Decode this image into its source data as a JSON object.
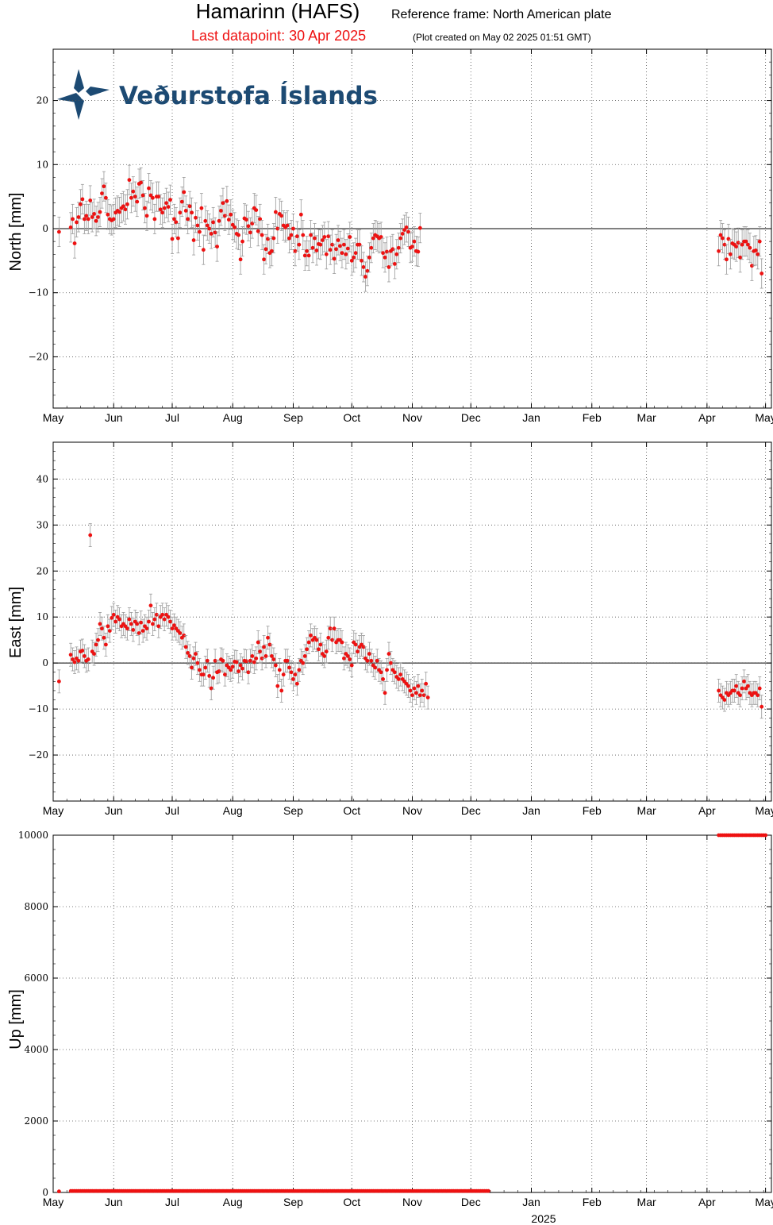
{
  "header": {
    "title": "Hamarinn (HAFS)",
    "frame": "Reference frame: North American plate",
    "last": "Last datapoint: 30 Apr 2025",
    "created": "(Plot created on May 02 2025 01:51 GMT)"
  },
  "logo": {
    "text": "Veðurstofa Íslands"
  },
  "colors": {
    "point": "#ee1111",
    "errorbar": "#999999",
    "frame": "#000000",
    "grid": "#555555"
  },
  "chart_data": [
    {
      "type": "scatter",
      "name": "north",
      "ylabel": "North [mm]",
      "ylim": [
        -28,
        28
      ],
      "yticks": [
        -20,
        -10,
        0,
        10,
        20
      ],
      "ytick_labels": [
        "−20",
        "−10",
        "0",
        "10",
        "20"
      ],
      "zero_line": true,
      "grid": true,
      "xlim": [
        0,
        368
      ],
      "month_ticks": [
        0,
        31,
        61,
        92,
        123,
        153,
        184,
        214,
        245,
        276,
        304,
        335,
        365
      ],
      "month_labels": [
        "May",
        "Jun",
        "Jul",
        "Aug",
        "Sep",
        "Oct",
        "Nov",
        "Dec",
        "Jan",
        "Feb",
        "Mar",
        "Apr",
        "May"
      ],
      "segments": [
        {
          "start_day": 3,
          "values": [
            -0.5
          ]
        },
        {
          "start_day": 9,
          "values": [
            0.2,
            1.5,
            -2.3,
            1.0,
            1.8,
            3.8,
            4.6,
            1.5,
            2.0,
            1.5,
            4.4,
            1.8,
            2.3,
            1.2,
            1.8,
            2.6,
            5.5,
            6.6,
            4.8,
            2.2,
            1.5,
            1.3,
            1.5,
            2.5,
            2.8,
            2.6,
            3.2,
            3.5,
            3.0,
            3.8,
            7.6,
            4.8,
            5.8,
            5.0,
            4.2,
            7.0,
            7.2,
            5.2,
            3.2,
            2.0,
            6.3,
            5.2,
            4.8,
            1.5,
            5.0,
            5.0,
            3.0,
            2.5,
            3.2,
            4.0,
            3.4,
            4.5,
            -1.6,
            1.5,
            1.0,
            -1.5,
            2.5,
            4.2,
            5.7,
            2.8,
            1.5,
            3.5,
            2.5,
            -1.8,
            1.7,
            0.5,
            -0.5,
            3.2,
            -3.3,
            1.2,
            0.5,
            0.0,
            -0.8,
            1.0,
            -0.6,
            -2.8,
            1.2,
            2.8,
            4.0,
            2.0,
            4.3,
            1.4,
            2.2,
            0.6,
            0.2,
            -0.8,
            -1.0,
            -4.8,
            -2.0,
            1.6,
            1.4,
            0.4,
            -0.6,
            0.8,
            3.2,
            2.9,
            -0.4,
            1.5,
            -1.0,
            -4.8,
            -3.2,
            -1.6,
            -3.8,
            -3.5,
            -1.5,
            2.6,
            0.0,
            2.3,
            2.0,
            0.5,
            0.2,
            0.5,
            -1.5,
            -1.0,
            0.0,
            -3.5,
            -1.2,
            -2.5,
            2.2,
            -1.0,
            -4.2,
            -3.5,
            -4.2,
            -1.0,
            -3.0,
            -1.5,
            -3.4,
            -2.4,
            -2.5,
            -1.8,
            -1.3,
            -4.0,
            -1.2,
            -3.3,
            -2.5,
            -4.7,
            -3.2,
            -1.8,
            -2.7,
            -3.8,
            -2.5,
            -4.0,
            -3.1,
            -1.3,
            -5.0,
            -4.5,
            -3.8,
            -2.5,
            -2.5,
            -5.0,
            -6.0,
            -7.5,
            -6.6,
            -4.5,
            -3.0,
            -1.5,
            -1.0,
            -1.2,
            -1.5,
            -1.3,
            -3.8,
            -4.5,
            -3.6,
            -6.0,
            -3.5,
            -3.2,
            -5.5,
            -4.0,
            -3.0,
            -1.5,
            -0.8,
            -0.2,
            0.2,
            -0.5,
            -3.0,
            -2.8,
            -2.0,
            -3.5,
            -3.6,
            0.1
          ]
        },
        {
          "start_day": 341,
          "values": [
            -3.5,
            -1.0,
            -1.5,
            -2.5,
            -4.8,
            -1.6,
            -4.0,
            -2.3,
            -2.5,
            -2.8,
            -2.2,
            -4.5,
            -2.5,
            -2.0,
            -2.0,
            -2.5,
            -3.0,
            -5.8,
            -3.5,
            -3.4,
            -4.0,
            -2.0,
            -7.0
          ]
        }
      ]
    },
    {
      "type": "scatter",
      "name": "east",
      "ylabel": "East [mm]",
      "ylim": [
        -30,
        48
      ],
      "yticks": [
        -20,
        -10,
        0,
        10,
        20,
        30,
        40
      ],
      "ytick_labels": [
        "−20",
        "−10",
        "0",
        "10",
        "20",
        "30",
        "40"
      ],
      "zero_line": true,
      "grid": true,
      "xlim": [
        0,
        368
      ],
      "month_ticks": [
        0,
        31,
        61,
        92,
        123,
        153,
        184,
        214,
        245,
        276,
        304,
        335,
        365
      ],
      "month_labels": [
        "May",
        "Jun",
        "Jul",
        "Aug",
        "Sep",
        "Oct",
        "Nov",
        "Dec",
        "Jan",
        "Feb",
        "Mar",
        "Apr",
        "May"
      ],
      "segments": [
        {
          "start_day": 3,
          "values": [
            -4.0
          ]
        },
        {
          "start_day": 9,
          "values": [
            1.8,
            0.8,
            0.2,
            1.0,
            0.5,
            2.5,
            2.7,
            1.5,
            0.5,
            0.8,
            27.8,
            2.5,
            2.0,
            4.0,
            5.0,
            8.5,
            7.5,
            5.5,
            4.0,
            8.0,
            7.0,
            9.8,
            10.5,
            9.0,
            10.0,
            9.5,
            8.0,
            8.5,
            8.0,
            7.5,
            9.5,
            8.5,
            7.2,
            9.0,
            8.5,
            6.5,
            8.8,
            7.0,
            8.0,
            7.5,
            9.0,
            12.5,
            8.5,
            9.5,
            10.5,
            8.0,
            10.0,
            10.5,
            9.5,
            10.5,
            10.0,
            9.0,
            7.5,
            8.2,
            7.5,
            7.0,
            6.5,
            5.5,
            6.0,
            3.5,
            2.2,
            1.5,
            -1.0,
            1.0,
            2.0,
            0.0,
            -1.5,
            -2.5,
            -2.5,
            -1.0,
            0.5,
            -2.8,
            -5.5,
            -3.2,
            0.5,
            -2.0,
            -1.8,
            0.8,
            0.5,
            -2.5,
            -0.5,
            -1.0,
            -1.5,
            -0.8,
            0.3,
            0.2,
            -1.8,
            -0.5,
            -1.2,
            0.5,
            0.4,
            -2.0,
            0.5,
            1.5,
            0.2,
            1.0,
            4.5,
            2.5,
            1.0,
            3.5,
            1.5,
            5.5,
            4.0,
            1.5,
            0.8,
            -0.5,
            -5.0,
            -1.5,
            -6.0,
            -2.5,
            0.5,
            0.5,
            -1.0,
            -2.0,
            -3.5,
            -2.5,
            -4.5,
            -1.5,
            0.5,
            0.0,
            1.5,
            3.0,
            4.5,
            6.0,
            5.0,
            5.5,
            5.0,
            3.0,
            4.0,
            2.0,
            1.5,
            2.5,
            5.5,
            7.5,
            5.0,
            7.5,
            4.5,
            5.0,
            5.0,
            4.5,
            1.0,
            2.0,
            1.5,
            0.8,
            -0.5,
            4.5,
            4.0,
            2.5,
            3.5,
            4.0,
            3.5,
            1.0,
            0.5,
            2.0,
            0.5,
            -0.5,
            -1.0,
            0.5,
            -1.5,
            -2.0,
            -3.5,
            -6.5,
            -1.5,
            2.0,
            0.0,
            -1.5,
            -2.0,
            -3.0,
            -3.5,
            -2.5,
            -3.5,
            -4.0,
            -4.5,
            -5.0,
            -6.0,
            -7.0,
            -5.5,
            -6.5,
            -5.0,
            -7.0,
            -6.0,
            -7.0,
            -4.5,
            -7.5
          ]
        },
        {
          "start_day": 341,
          "values": [
            -6.0,
            -7.0,
            -7.5,
            -8.0,
            -6.5,
            -7.0,
            -6.5,
            -6.0,
            -6.0,
            -5.0,
            -6.5,
            -7.0,
            -5.5,
            -4.0,
            -5.5,
            -5.0,
            -6.5,
            -7.0,
            -6.5,
            -6.5,
            -7.0,
            -5.5,
            -9.5
          ]
        }
      ]
    },
    {
      "type": "scatter",
      "name": "up",
      "ylabel": "Up [mm]",
      "ylim": [
        0,
        10000
      ],
      "yticks": [
        0,
        2000,
        4000,
        6000,
        8000,
        10000
      ],
      "ytick_labels": [
        "0",
        "2000",
        "4000",
        "6000",
        "8000",
        "10000"
      ],
      "zero_line": false,
      "grid": true,
      "xlim": [
        0,
        368
      ],
      "month_ticks": [
        0,
        31,
        61,
        92,
        123,
        153,
        184,
        214,
        245,
        276,
        304,
        335,
        365
      ],
      "month_labels": [
        "May",
        "Jun",
        "Jul",
        "Aug",
        "Sep",
        "Oct",
        "Nov",
        "Dec",
        "Jan",
        "Feb",
        "Mar",
        "Apr",
        "May"
      ],
      "xlabel_year": "2025",
      "segments": [
        {
          "start_day": 3,
          "constant": 30,
          "count": 1
        },
        {
          "start_day": 9,
          "constant": 40,
          "count": 215
        },
        {
          "start_day": 341,
          "constant": 10000,
          "count": 25
        }
      ]
    }
  ]
}
